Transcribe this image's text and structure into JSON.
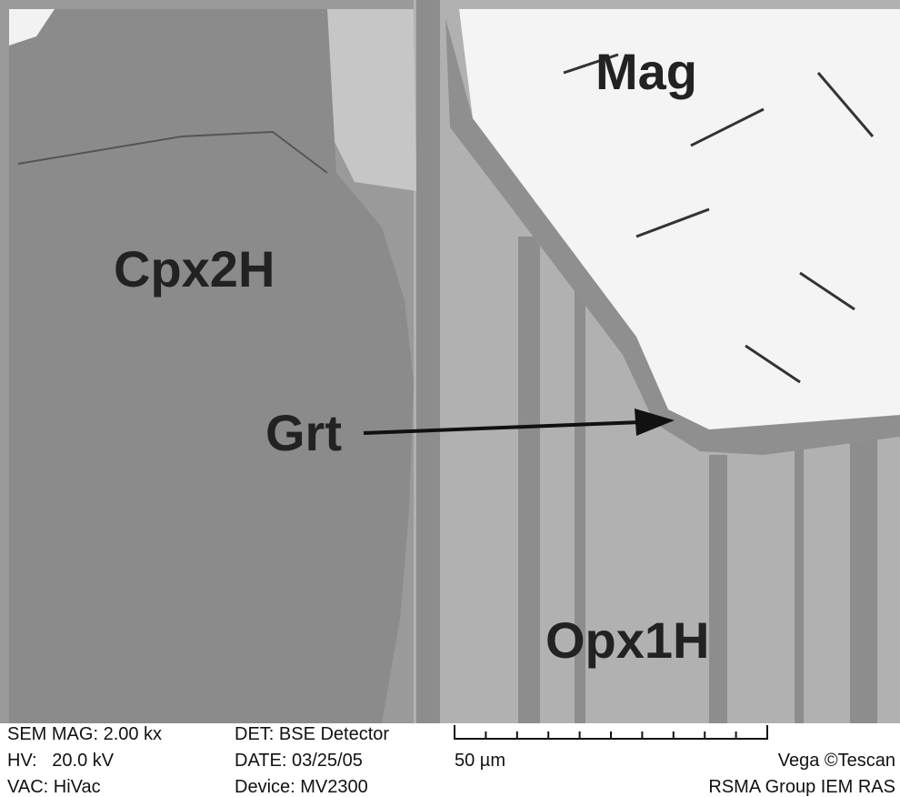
{
  "labels": {
    "mag": "Mag",
    "cpx": "Cpx2H",
    "grt": "Grt",
    "opx": "Opx1H"
  },
  "info": {
    "mag": "SEM MAG: 2.00 kx",
    "hv": "HV:   20.0 kV",
    "vac": "VAC: HiVac",
    "det": "DET: BSE Detector",
    "date": "DATE: 03/25/05",
    "device": "Device: MV2300",
    "scale": "50 µm",
    "vendor": "Vega ©Tescan",
    "group": "RSMA Group IEM RAS"
  }
}
